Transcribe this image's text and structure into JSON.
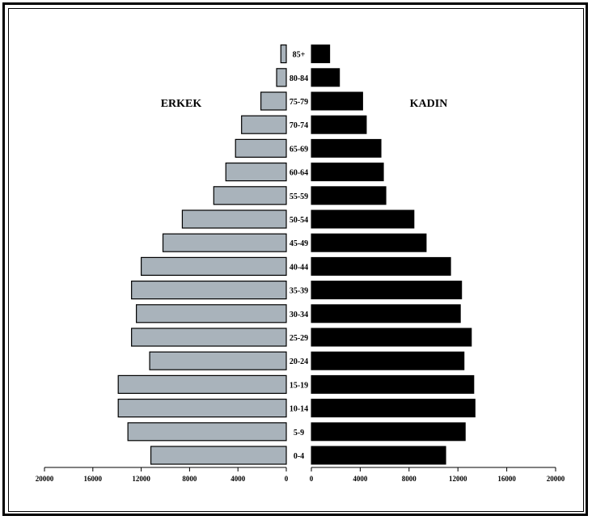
{
  "chart_data": {
    "type": "bar",
    "orientation": "horizontal-pyramid",
    "categories": [
      "0-4",
      "5-9",
      "10-14",
      "15-19",
      "20-24",
      "25-29",
      "30-34",
      "35-39",
      "40-44",
      "45-49",
      "50-54",
      "55-59",
      "60-64",
      "65-69",
      "70-74",
      "75-79",
      "80-84",
      "85+"
    ],
    "series": [
      {
        "name": "ERKEK",
        "color": "#a9b3bb",
        "values": [
          11200,
          13100,
          13900,
          13900,
          11300,
          12800,
          12400,
          12800,
          12000,
          10200,
          8600,
          6000,
          5000,
          4200,
          3700,
          2100,
          800,
          450
        ]
      },
      {
        "name": "KADIN",
        "color": "#000000",
        "values": [
          11000,
          12600,
          13400,
          13300,
          12500,
          13100,
          12200,
          12300,
          11400,
          9400,
          8400,
          6100,
          5900,
          5700,
          4500,
          4200,
          2300,
          1500
        ]
      }
    ],
    "left_axis": {
      "ticks": [
        20000,
        16000,
        12000,
        8000,
        4000,
        0
      ],
      "range": [
        0,
        20000
      ]
    },
    "right_axis": {
      "ticks": [
        0,
        4000,
        8000,
        12000,
        16000,
        20000
      ],
      "range": [
        0,
        20000
      ]
    },
    "labels": {
      "left": "ERKEK",
      "right": "KADIN"
    },
    "grid": false
  }
}
